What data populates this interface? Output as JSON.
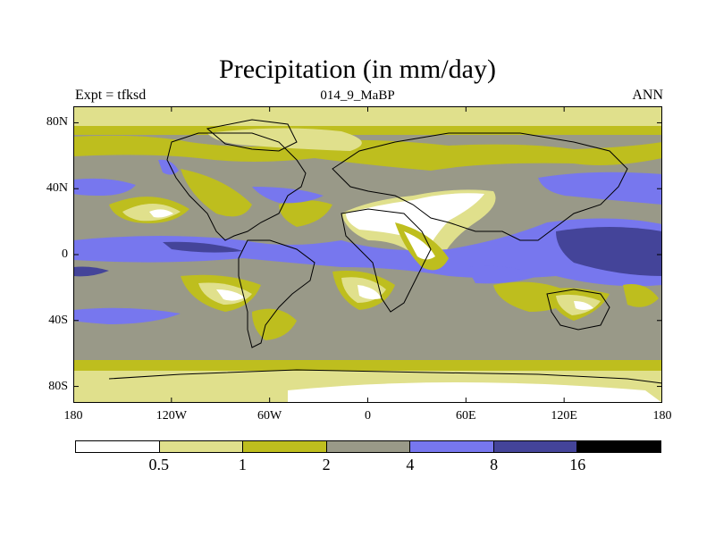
{
  "title": "Precipitation (in mm/day)",
  "subtitle_left": "Expt = tfksd",
  "subtitle_center": "014_9_MaBP",
  "subtitle_right": "ANN",
  "lat_ticks": [
    {
      "label": "80N",
      "lat": 80
    },
    {
      "label": "40N",
      "lat": 40
    },
    {
      "label": "0",
      "lat": 0
    },
    {
      "label": "40S",
      "lat": -40
    },
    {
      "label": "80S",
      "lat": -80
    }
  ],
  "lon_ticks": [
    {
      "label": "180",
      "lon": -180
    },
    {
      "label": "120W",
      "lon": -120
    },
    {
      "label": "60W",
      "lon": -60
    },
    {
      "label": "0",
      "lon": 0
    },
    {
      "label": "60E",
      "lon": 60
    },
    {
      "label": "120E",
      "lon": 120
    },
    {
      "label": "180",
      "lon": 180
    }
  ],
  "colorbar": {
    "colors": [
      "#ffffff",
      "#e0e08c",
      "#bebe1e",
      "#999988",
      "#7777ee",
      "#444499",
      "#000000"
    ],
    "levels": [
      "0.5",
      "1",
      "2",
      "4",
      "8",
      "16"
    ]
  },
  "map": {
    "lon_range": [
      -180,
      180
    ],
    "lat_range": [
      -90,
      90
    ]
  }
}
